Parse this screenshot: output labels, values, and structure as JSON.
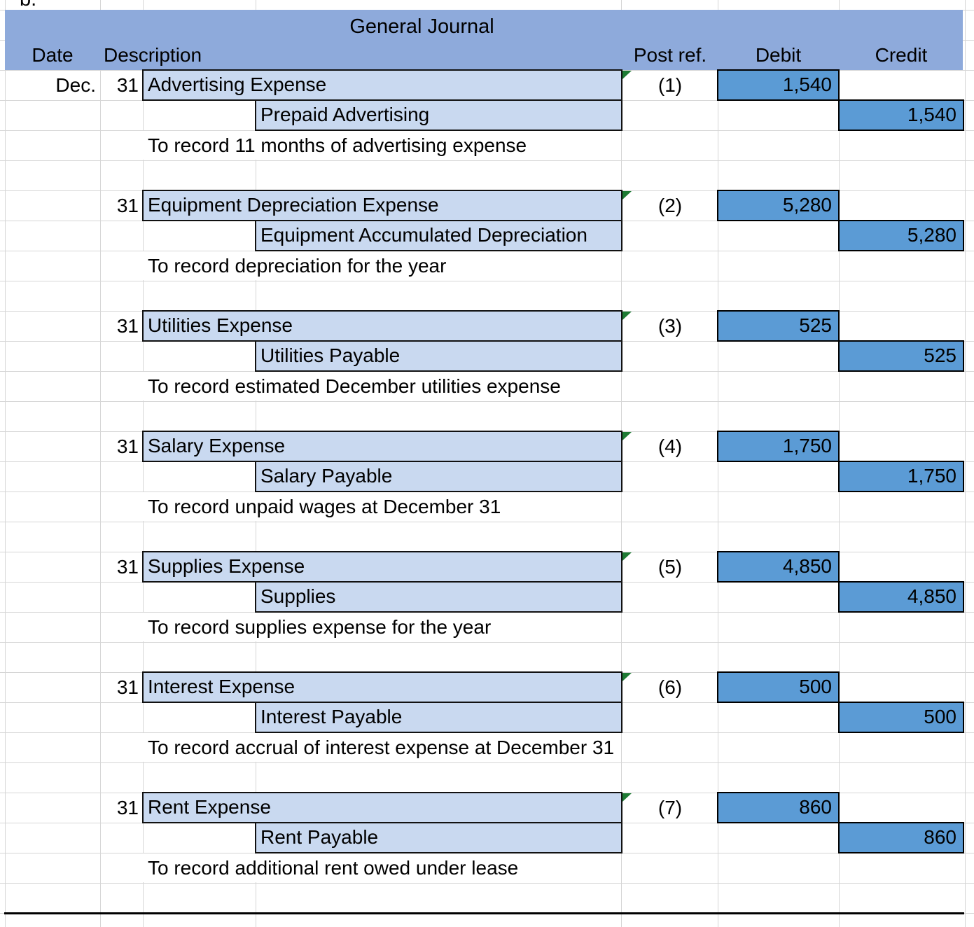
{
  "page": {
    "corner_label": "b."
  },
  "journal": {
    "title": "General Journal",
    "columns": {
      "date": "Date",
      "description": "Description",
      "post_ref": "Post ref.",
      "debit": "Debit",
      "credit": "Credit"
    },
    "month": "Dec.",
    "entries": [
      {
        "day": "31",
        "debit_account": "Advertising Expense",
        "credit_account": "Prepaid Advertising",
        "memo": "To record 11 months of advertising expense",
        "post_ref": "(1)",
        "debit": "1,540",
        "credit": "1,540"
      },
      {
        "day": "31",
        "debit_account": "Equipment Depreciation Expense",
        "credit_account": "Equipment Accumulated Depreciation",
        "memo": "To record depreciation for the year",
        "post_ref": "(2)",
        "debit": "5,280",
        "credit": "5,280"
      },
      {
        "day": "31",
        "debit_account": "Utilities Expense",
        "credit_account": "Utilities Payable",
        "memo": "To record estimated December utilities expense",
        "post_ref": "(3)",
        "debit": "525",
        "credit": "525"
      },
      {
        "day": "31",
        "debit_account": "Salary Expense",
        "credit_account": "Salary Payable",
        "memo": "To record unpaid wages at December 31",
        "post_ref": "(4)",
        "debit": "1,750",
        "credit": "1,750"
      },
      {
        "day": "31",
        "debit_account": "Supplies Expense",
        "credit_account": "Supplies",
        "memo": "To record supplies expense for the year",
        "post_ref": "(5)",
        "debit": "4,850",
        "credit": "4,850"
      },
      {
        "day": "31",
        "debit_account": "Interest Expense",
        "credit_account": "Interest Payable",
        "memo": "To record accrual of interest expense at December 31",
        "post_ref": "(6)",
        "debit": "500",
        "credit": "500"
      },
      {
        "day": "31",
        "debit_account": "Rent Expense",
        "credit_account": "Rent Payable",
        "memo": "To record additional rent owed under lease",
        "post_ref": "(7)",
        "debit": "860",
        "credit": "860"
      }
    ]
  },
  "colors": {
    "header_band": "#8EAADB",
    "account_cell_fill": "#C9D9F0",
    "amount_cell_fill": "#5B9BD5",
    "flag_green": "#1E7B34",
    "gridline": "#D6D6D6"
  }
}
